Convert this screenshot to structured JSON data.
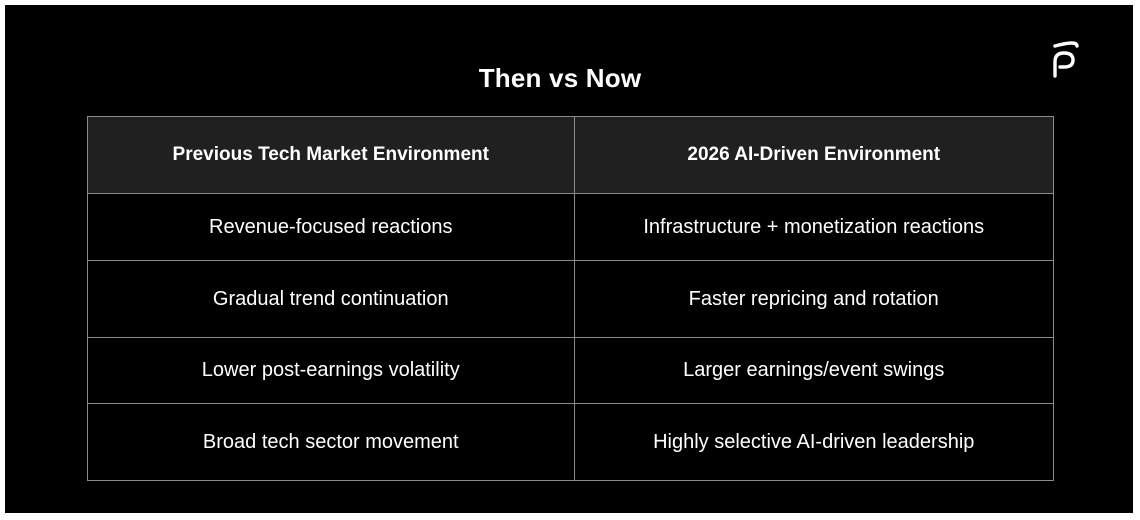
{
  "title": "Then vs Now",
  "logo": {
    "icon": "brand-logo-icon"
  },
  "colors": {
    "background": "#000000",
    "header_background": "#202020",
    "text": "#ffffff",
    "border": "#8a8a8a"
  },
  "table": {
    "headers": [
      "Previous Tech Market Environment",
      "2026 AI-Driven Environment"
    ],
    "rows": [
      [
        "Revenue-focused reactions",
        "Infrastructure + monetization reactions"
      ],
      [
        "Gradual trend continuation",
        "Faster repricing and rotation"
      ],
      [
        "Lower post-earnings volatility",
        "Larger earnings/event swings"
      ],
      [
        "Broad tech sector movement",
        "Highly selective AI-driven leadership"
      ]
    ]
  }
}
